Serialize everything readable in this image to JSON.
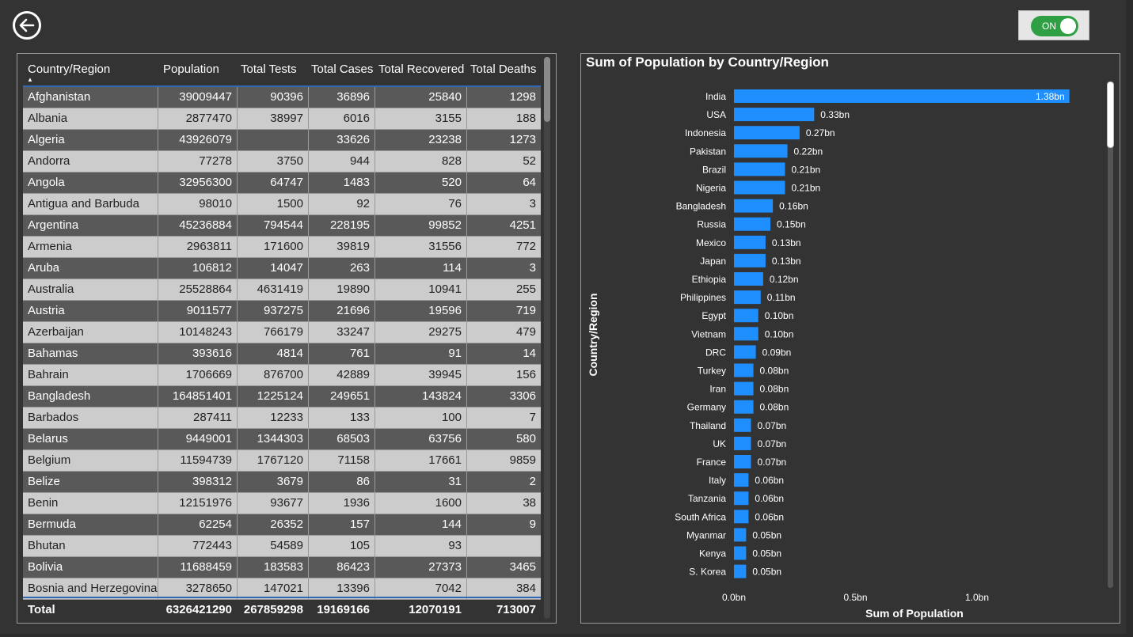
{
  "toggle": {
    "label": "ON"
  },
  "table": {
    "columns": [
      "Country/Region",
      "Population",
      "Total Tests",
      "Total Cases",
      "Total Recovered",
      "Total Deaths"
    ],
    "rows": [
      [
        "Afghanistan",
        "39009447",
        "90396",
        "36896",
        "25840",
        "1298"
      ],
      [
        "Albania",
        "2877470",
        "38997",
        "6016",
        "3155",
        "188"
      ],
      [
        "Algeria",
        "43926079",
        "",
        "33626",
        "23238",
        "1273"
      ],
      [
        "Andorra",
        "77278",
        "3750",
        "944",
        "828",
        "52"
      ],
      [
        "Angola",
        "32956300",
        "64747",
        "1483",
        "520",
        "64"
      ],
      [
        "Antigua and Barbuda",
        "98010",
        "1500",
        "92",
        "76",
        "3"
      ],
      [
        "Argentina",
        "45236884",
        "794544",
        "228195",
        "99852",
        "4251"
      ],
      [
        "Armenia",
        "2963811",
        "171600",
        "39819",
        "31556",
        "772"
      ],
      [
        "Aruba",
        "106812",
        "14047",
        "263",
        "114",
        "3"
      ],
      [
        "Australia",
        "25528864",
        "4631419",
        "19890",
        "10941",
        "255"
      ],
      [
        "Austria",
        "9011577",
        "937275",
        "21696",
        "19596",
        "719"
      ],
      [
        "Azerbaijan",
        "10148243",
        "766179",
        "33247",
        "29275",
        "479"
      ],
      [
        "Bahamas",
        "393616",
        "4814",
        "761",
        "91",
        "14"
      ],
      [
        "Bahrain",
        "1706669",
        "876700",
        "42889",
        "39945",
        "156"
      ],
      [
        "Bangladesh",
        "164851401",
        "1225124",
        "249651",
        "143824",
        "3306"
      ],
      [
        "Barbados",
        "287411",
        "12233",
        "133",
        "100",
        "7"
      ],
      [
        "Belarus",
        "9449001",
        "1344303",
        "68503",
        "63756",
        "580"
      ],
      [
        "Belgium",
        "11594739",
        "1767120",
        "71158",
        "17661",
        "9859"
      ],
      [
        "Belize",
        "398312",
        "3679",
        "86",
        "31",
        "2"
      ],
      [
        "Benin",
        "12151976",
        "93677",
        "1936",
        "1600",
        "38"
      ],
      [
        "Bermuda",
        "62254",
        "26352",
        "157",
        "144",
        "9"
      ],
      [
        "Bhutan",
        "772443",
        "54589",
        "105",
        "93",
        ""
      ],
      [
        "Bolivia",
        "11688459",
        "183583",
        "86423",
        "27373",
        "3465"
      ],
      [
        "Bosnia and Herzegovina",
        "3278650",
        "147021",
        "13396",
        "7042",
        "384"
      ]
    ],
    "total": [
      "Total",
      "6326421290",
      "267859298",
      "19169166",
      "12070191",
      "713007"
    ]
  },
  "chart_data": {
    "type": "bar",
    "orientation": "horizontal",
    "title": "Sum of Population by Country/Region",
    "xlabel": "Sum of Population",
    "ylabel": "Country/Region",
    "xlim": [
      0,
      1.38
    ],
    "xticks": [
      "0.0bn",
      "0.5bn",
      "1.0bn"
    ],
    "xtick_values": [
      0,
      0.5,
      1.0
    ],
    "bar_color": "#1f8fff",
    "categories": [
      "India",
      "USA",
      "Indonesia",
      "Pakistan",
      "Brazil",
      "Nigeria",
      "Bangladesh",
      "Russia",
      "Mexico",
      "Japan",
      "Ethiopia",
      "Philippines",
      "Egypt",
      "Vietnam",
      "DRC",
      "Turkey",
      "Iran",
      "Germany",
      "Thailand",
      "UK",
      "France",
      "Italy",
      "Tanzania",
      "South Africa",
      "Myanmar",
      "Kenya",
      "S. Korea"
    ],
    "values": [
      1.38,
      0.33,
      0.27,
      0.22,
      0.21,
      0.21,
      0.16,
      0.15,
      0.13,
      0.13,
      0.12,
      0.11,
      0.1,
      0.1,
      0.09,
      0.08,
      0.08,
      0.08,
      0.07,
      0.07,
      0.07,
      0.06,
      0.06,
      0.06,
      0.05,
      0.05,
      0.05
    ],
    "labels": [
      "1.38bn",
      "0.33bn",
      "0.27bn",
      "0.22bn",
      "0.21bn",
      "0.21bn",
      "0.16bn",
      "0.15bn",
      "0.13bn",
      "0.13bn",
      "0.12bn",
      "0.11bn",
      "0.10bn",
      "0.10bn",
      "0.09bn",
      "0.08bn",
      "0.08bn",
      "0.08bn",
      "0.07bn",
      "0.07bn",
      "0.07bn",
      "0.06bn",
      "0.06bn",
      "0.06bn",
      "0.05bn",
      "0.05bn",
      "0.05bn"
    ]
  }
}
